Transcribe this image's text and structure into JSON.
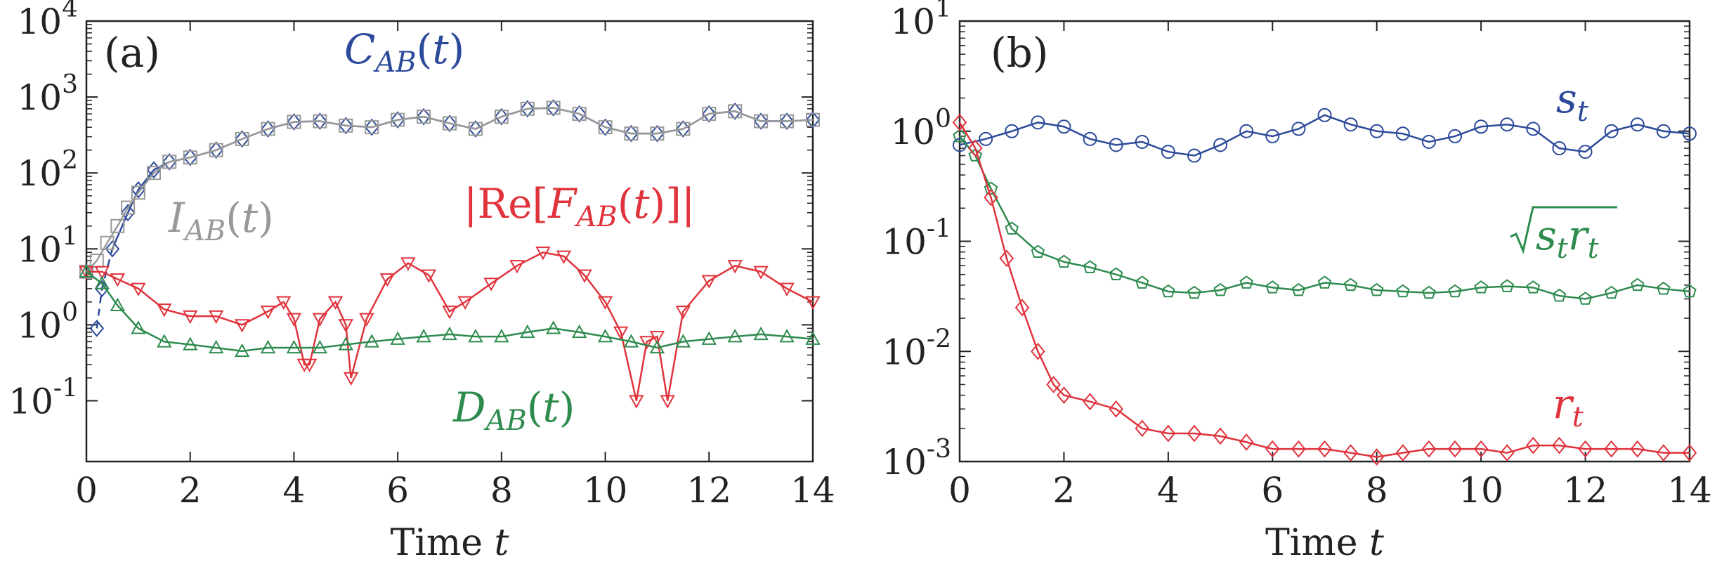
{
  "chart_data": [
    {
      "type": "line",
      "panel": "(a)",
      "xlabel": "Time t",
      "xlim": [
        0,
        14
      ],
      "ylim_log10": [
        -1.8,
        4
      ],
      "y_scale": "log",
      "xticks": [
        0,
        2,
        4,
        6,
        8,
        10,
        12,
        14
      ],
      "yticks": [
        {
          "base": "10",
          "exp": "4"
        },
        {
          "base": "10",
          "exp": "3"
        },
        {
          "base": "10",
          "exp": "2"
        },
        {
          "base": "10",
          "exp": "1"
        },
        {
          "base": "10",
          "exp": "0"
        },
        {
          "base": "10",
          "exp": "-1"
        }
      ],
      "series": [
        {
          "name": "C_AB(t)",
          "label_parts": [
            {
              "t": "C"
            },
            {
              "t": "AB",
              "sub": true
            },
            {
              "t": "(t)"
            }
          ],
          "color": "#2c4a9a",
          "marker": "diamond",
          "dashed_start": true,
          "x": [
            0.2,
            0.3,
            0.5,
            0.8,
            1.0,
            1.3,
            1.6,
            2.0,
            2.5,
            3.0,
            3.5,
            4.0,
            4.5,
            5.0,
            5.5,
            6.0,
            6.5,
            7.0,
            7.5,
            8.0,
            8.5,
            9.0,
            9.5,
            10.0,
            10.5,
            11.0,
            11.5,
            12.0,
            12.5,
            13.0,
            13.5,
            14.0
          ],
          "y": [
            0.9,
            3,
            10,
            30,
            60,
            110,
            140,
            160,
            200,
            280,
            380,
            470,
            480,
            420,
            400,
            500,
            550,
            450,
            380,
            550,
            700,
            720,
            600,
            400,
            330,
            330,
            380,
            600,
            650,
            480,
            480,
            500
          ]
        },
        {
          "name": "I_AB(t)",
          "label_parts": [
            {
              "t": "I"
            },
            {
              "t": "AB",
              "sub": true
            },
            {
              "t": "(t)"
            }
          ],
          "color": "#999999",
          "marker": "square",
          "x": [
            0.0,
            0.2,
            0.4,
            0.6,
            0.8,
            1.0,
            1.3,
            1.6,
            2.0,
            2.5,
            3.0,
            3.5,
            4.0,
            4.5,
            5.0,
            5.5,
            6.0,
            6.5,
            7.0,
            7.5,
            8.0,
            8.5,
            9.0,
            9.5,
            10.0,
            10.5,
            11.0,
            11.5,
            12.0,
            12.5,
            13.0,
            13.5,
            14.0
          ],
          "y": [
            5,
            7,
            12,
            20,
            35,
            55,
            100,
            140,
            160,
            200,
            280,
            380,
            470,
            480,
            420,
            400,
            500,
            550,
            450,
            380,
            550,
            700,
            720,
            600,
            400,
            330,
            330,
            380,
            600,
            650,
            480,
            480,
            500
          ]
        },
        {
          "name": "|Re[F_AB(t)]|",
          "label_parts": [
            {
              "t": "|Re["
            },
            {
              "t": "F"
            },
            {
              "t": "AB",
              "sub": true
            },
            {
              "t": "(t)]|"
            }
          ],
          "color": "#e0333c",
          "marker": "triangle-down",
          "x": [
            0.0,
            0.3,
            0.6,
            1.0,
            1.5,
            2.0,
            2.5,
            3.0,
            3.5,
            3.8,
            4.0,
            4.2,
            4.3,
            4.5,
            4.8,
            5.0,
            5.1,
            5.4,
            5.8,
            6.2,
            6.6,
            7.0,
            7.3,
            7.8,
            8.3,
            8.8,
            9.2,
            9.6,
            10.0,
            10.3,
            10.6,
            10.8,
            11.0,
            11.2,
            11.5,
            12.0,
            12.5,
            13.0,
            13.5,
            14.0
          ],
          "y": [
            5,
            5,
            4,
            3,
            1.6,
            1.3,
            1.3,
            1,
            1.5,
            2,
            1.2,
            0.3,
            0.3,
            1.2,
            2,
            1,
            0.2,
            1.2,
            4,
            6.5,
            4.5,
            1.5,
            2,
            3.5,
            6,
            9,
            8,
            4.5,
            2,
            0.8,
            0.1,
            0.6,
            0.7,
            0.1,
            1.5,
            3.8,
            6,
            5,
            3,
            2
          ]
        },
        {
          "name": "D_AB(t)",
          "label_parts": [
            {
              "t": "D"
            },
            {
              "t": "AB",
              "sub": true
            },
            {
              "t": "(t)"
            }
          ],
          "color": "#2e8b4e",
          "marker": "triangle-up",
          "x": [
            0.0,
            0.3,
            0.6,
            1.0,
            1.5,
            2.0,
            2.5,
            3.0,
            3.5,
            4.0,
            4.5,
            5.0,
            5.5,
            6.0,
            6.5,
            7.0,
            7.5,
            8.0,
            8.5,
            9.0,
            9.5,
            10.0,
            10.5,
            11.0,
            11.5,
            12.0,
            12.5,
            13.0,
            13.5,
            14.0
          ],
          "y": [
            5,
            3.5,
            1.8,
            0.9,
            0.6,
            0.55,
            0.5,
            0.45,
            0.5,
            0.5,
            0.5,
            0.55,
            0.6,
            0.65,
            0.7,
            0.75,
            0.7,
            0.7,
            0.8,
            0.9,
            0.8,
            0.7,
            0.6,
            0.5,
            0.6,
            0.65,
            0.7,
            0.75,
            0.7,
            0.65
          ]
        }
      ]
    },
    {
      "type": "line",
      "panel": "(b)",
      "xlabel": "Time t",
      "xlim": [
        0,
        14
      ],
      "ylim_log10": [
        -3,
        1
      ],
      "y_scale": "log",
      "xticks": [
        0,
        2,
        4,
        6,
        8,
        10,
        12,
        14
      ],
      "yticks": [
        {
          "base": "10",
          "exp": "1"
        },
        {
          "base": "10",
          "exp": "0"
        },
        {
          "base": "10",
          "exp": "-1"
        },
        {
          "base": "10",
          "exp": "-2"
        },
        {
          "base": "10",
          "exp": "-3"
        }
      ],
      "series": [
        {
          "name": "s_t",
          "label_parts": [
            {
              "t": "s"
            },
            {
              "t": "t",
              "sub": true
            }
          ],
          "color": "#2c4a9a",
          "marker": "circle",
          "x": [
            0.0,
            0.5,
            1.0,
            1.5,
            2.0,
            2.5,
            3.0,
            3.5,
            4.0,
            4.5,
            5.0,
            5.5,
            6.0,
            6.5,
            7.0,
            7.5,
            8.0,
            8.5,
            9.0,
            9.5,
            10.0,
            10.5,
            11.0,
            11.5,
            12.0,
            12.5,
            13.0,
            13.5,
            14.0
          ],
          "y": [
            0.75,
            0.85,
            1.0,
            1.2,
            1.1,
            0.85,
            0.75,
            0.8,
            0.65,
            0.6,
            0.75,
            1.0,
            0.9,
            1.05,
            1.4,
            1.15,
            1.0,
            0.95,
            0.8,
            0.9,
            1.1,
            1.15,
            1.05,
            0.7,
            0.65,
            1.0,
            1.15,
            1.0,
            0.95
          ]
        },
        {
          "name": "sqrt(s_t r_t)",
          "label_parts": [
            {
              "t": "s"
            },
            {
              "t": "t",
              "sub": true
            },
            {
              "t": "r"
            },
            {
              "t": "t",
              "sub": true
            }
          ],
          "sqrt": true,
          "color": "#2e8b4e",
          "marker": "pentagon",
          "x": [
            0.0,
            0.3,
            0.6,
            1.0,
            1.5,
            2.0,
            2.5,
            3.0,
            3.5,
            4.0,
            4.5,
            5.0,
            5.5,
            6.0,
            6.5,
            7.0,
            7.5,
            8.0,
            8.5,
            9.0,
            9.5,
            10.0,
            10.5,
            11.0,
            11.5,
            12.0,
            12.5,
            13.0,
            13.5,
            14.0
          ],
          "y": [
            0.9,
            0.6,
            0.3,
            0.13,
            0.08,
            0.065,
            0.058,
            0.05,
            0.042,
            0.035,
            0.034,
            0.036,
            0.042,
            0.038,
            0.036,
            0.042,
            0.04,
            0.036,
            0.035,
            0.034,
            0.035,
            0.038,
            0.039,
            0.038,
            0.032,
            0.03,
            0.034,
            0.04,
            0.037,
            0.035
          ]
        },
        {
          "name": "r_t",
          "label_parts": [
            {
              "t": "r"
            },
            {
              "t": "t",
              "sub": true
            }
          ],
          "color": "#e0333c",
          "marker": "diamond",
          "x": [
            0.0,
            0.3,
            0.6,
            0.9,
            1.2,
            1.5,
            1.8,
            2.0,
            2.5,
            3.0,
            3.5,
            4.0,
            4.5,
            5.0,
            5.5,
            6.0,
            6.5,
            7.0,
            7.5,
            8.0,
            8.5,
            9.0,
            9.5,
            10.0,
            10.5,
            11.0,
            11.5,
            12.0,
            12.5,
            13.0,
            13.5,
            14.0
          ],
          "y": [
            1.2,
            0.7,
            0.25,
            0.07,
            0.025,
            0.01,
            0.005,
            0.004,
            0.0035,
            0.003,
            0.002,
            0.0018,
            0.0018,
            0.0017,
            0.0015,
            0.0013,
            0.0013,
            0.0013,
            0.0012,
            0.0011,
            0.0012,
            0.0013,
            0.0013,
            0.0013,
            0.0012,
            0.0014,
            0.0014,
            0.0013,
            0.0013,
            0.0013,
            0.0012,
            0.0012
          ]
        }
      ]
    }
  ]
}
